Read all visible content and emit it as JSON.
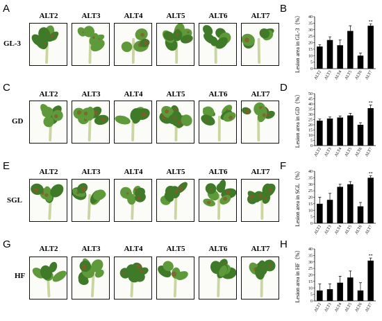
{
  "rows": [
    {
      "photo_letter": "A",
      "chart_letter": "B",
      "label": "GL-3",
      "lines": [
        "ALT2",
        "ALT3",
        "ALT4",
        "ALT5",
        "ALT6",
        "ALT7"
      ]
    },
    {
      "photo_letter": "C",
      "chart_letter": "D",
      "label": "GD",
      "lines": [
        "ALT2",
        "ALT3",
        "ALT4",
        "ALT5",
        "ALT6",
        "ALT7"
      ]
    },
    {
      "photo_letter": "E",
      "chart_letter": "F",
      "label": "SGL",
      "lines": [
        "ALT2",
        "ALT3",
        "ALT4",
        "ALT5",
        "ALT6",
        "ALT7"
      ]
    },
    {
      "photo_letter": "G",
      "chart_letter": "H",
      "label": "HF",
      "lines": [
        "ALT2",
        "ALT3",
        "ALT4",
        "ALT5",
        "ALT6",
        "ALT7"
      ]
    }
  ],
  "colors": {
    "bar": "#000000",
    "leaf": "#5f9a3a",
    "leaf_dark": "#3f7a28",
    "stem": "#c9d6a0",
    "lesion": "#8a5a2a"
  },
  "chart_data": [
    {
      "type": "bar",
      "ylabel": "Lesion area in GL-3（%）",
      "categories": [
        "ALT2",
        "ALT3",
        "ALT4",
        "ALT5",
        "ALT6",
        "ALT7"
      ],
      "values": [
        17,
        22,
        18,
        29,
        10,
        33
      ],
      "errors": [
        1.5,
        2.5,
        4,
        4,
        2,
        1.5
      ],
      "significance": [
        "",
        "",
        "",
        "",
        "",
        "**"
      ],
      "ylim": [
        0,
        40
      ],
      "yticks": [
        "0",
        "5",
        "10",
        "15",
        "20",
        "25",
        "30",
        "35",
        "40"
      ]
    },
    {
      "type": "bar",
      "ylabel": "Lesion area in GD（%）",
      "categories": [
        "ALT2",
        "ALT3",
        "ALT4",
        "ALT5",
        "ALT6",
        "ALT7"
      ],
      "values": [
        24,
        26,
        27,
        29,
        20,
        36
      ],
      "errors": [
        1.5,
        1.5,
        1.5,
        2,
        2,
        3
      ],
      "significance": [
        "",
        "",
        "",
        "",
        "",
        "**"
      ],
      "ylim": [
        0,
        50
      ],
      "yticks": [
        "0",
        "5",
        "10",
        "15",
        "20",
        "25",
        "30",
        "35",
        "40",
        "45",
        "50"
      ]
    },
    {
      "type": "bar",
      "ylabel": "Lesion area in SGL（%）",
      "categories": [
        "ALT2",
        "ALT3",
        "ALT4",
        "ALT5",
        "ALT6",
        "ALT7"
      ],
      "values": [
        15,
        18,
        28,
        30,
        13,
        35
      ],
      "errors": [
        5,
        5,
        2,
        2,
        3,
        1.5
      ],
      "significance": [
        "",
        "",
        "",
        "",
        "",
        "**"
      ],
      "ylim": [
        0,
        40
      ],
      "yticks": [
        "0",
        "5",
        "10",
        "15",
        "20",
        "25",
        "30",
        "35",
        "40"
      ]
    },
    {
      "type": "bar",
      "ylabel": "Lesion area in HF（%）",
      "categories": [
        "ALT2",
        "ALT3",
        "ALT4",
        "ALT5",
        "ALT6",
        "ALT7"
      ],
      "values": [
        8,
        9,
        14,
        18,
        8,
        31
      ],
      "errors": [
        5,
        4,
        5,
        5,
        6,
        2
      ],
      "significance": [
        "",
        "",
        "",
        "",
        "",
        "**"
      ],
      "ylim": [
        0,
        40
      ],
      "yticks": [
        "0",
        "5",
        "10",
        "15",
        "20",
        "25",
        "30",
        "35",
        "40"
      ]
    }
  ]
}
